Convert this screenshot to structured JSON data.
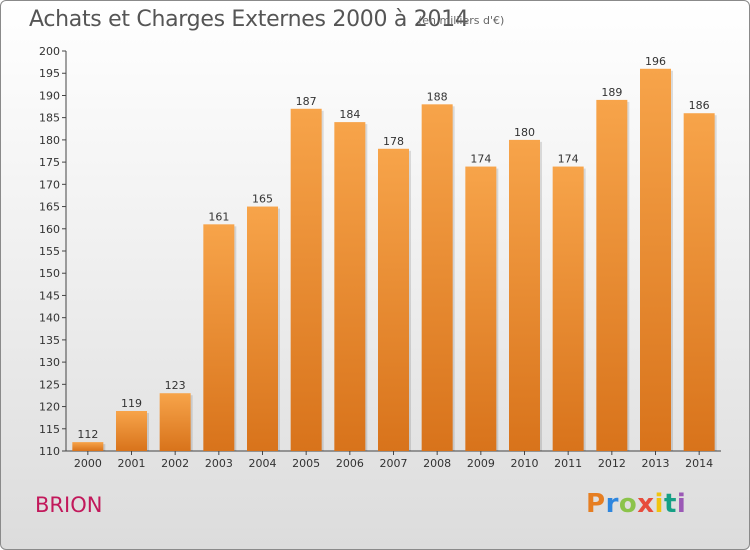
{
  "title": "Achats et Charges Externes 2000 à 2014",
  "subtitle": "(en milliers d'€)",
  "commune": "BRION",
  "logo": {
    "text": "Proxiti",
    "letters": [
      "P",
      "r",
      "o",
      "x",
      "i",
      "t",
      "i"
    ]
  },
  "colors": {
    "bar_top": "#f7a44a",
    "bar_bottom": "#d8731b",
    "title": "#555555",
    "commune": "#c2185b"
  },
  "chart_data": {
    "type": "bar",
    "categories": [
      "2000",
      "2001",
      "2002",
      "2003",
      "2004",
      "2005",
      "2006",
      "2007",
      "2008",
      "2009",
      "2010",
      "2011",
      "2012",
      "2013",
      "2014"
    ],
    "values": [
      112,
      119,
      123,
      161,
      165,
      187,
      184,
      178,
      188,
      174,
      180,
      174,
      189,
      196,
      186
    ],
    "ylim": [
      110,
      200
    ],
    "yticks": [
      110,
      115,
      120,
      125,
      130,
      135,
      140,
      145,
      150,
      155,
      160,
      165,
      170,
      175,
      180,
      185,
      190,
      195,
      200
    ],
    "grid": false,
    "data_labels": true
  }
}
